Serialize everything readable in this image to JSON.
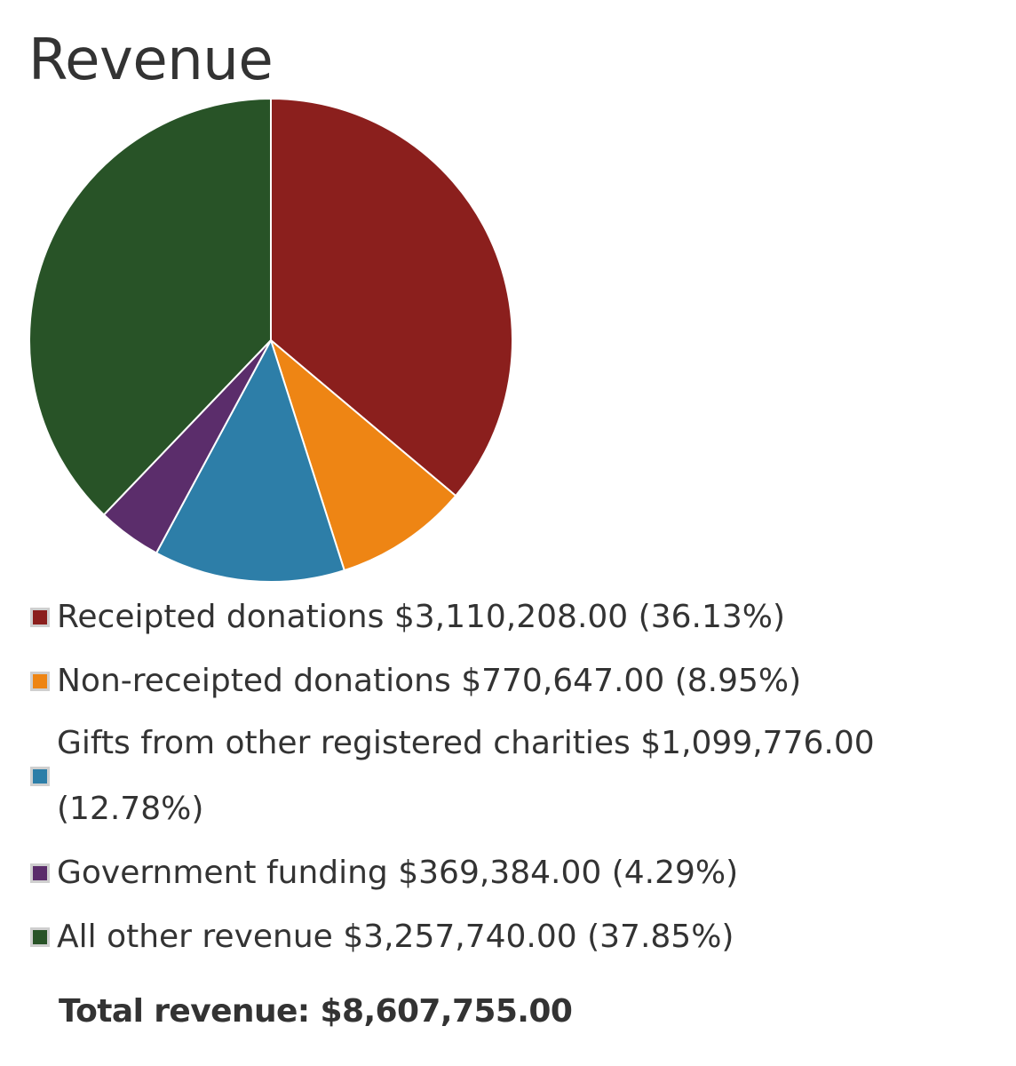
{
  "chart_data": {
    "type": "pie",
    "title": "Revenue",
    "slices": [
      {
        "label": "Receipted donations",
        "amount": "$3,110,208.00",
        "percent_text": "(36.13%)",
        "value": 36.13,
        "color": "#8b1f1d"
      },
      {
        "label": "Non-receipted donations",
        "amount": "$770,647.00",
        "percent_text": "(8.95%)",
        "value": 8.95,
        "color": "#ee8514"
      },
      {
        "label": "Gifts from other registered charities",
        "amount": "$1,099,776.00",
        "percent_text": "(12.78%)",
        "value": 12.78,
        "color": "#2d7ea8"
      },
      {
        "label": "Government funding",
        "amount": "$369,384.00",
        "percent_text": "(4.29%)",
        "value": 4.29,
        "color": "#5b2d6b"
      },
      {
        "label": "All other revenue",
        "amount": "$3,257,740.00",
        "percent_text": "(37.85%)",
        "value": 37.85,
        "color": "#285327"
      }
    ],
    "total_label": "Total revenue:",
    "total_value": "$8,607,755.00"
  }
}
